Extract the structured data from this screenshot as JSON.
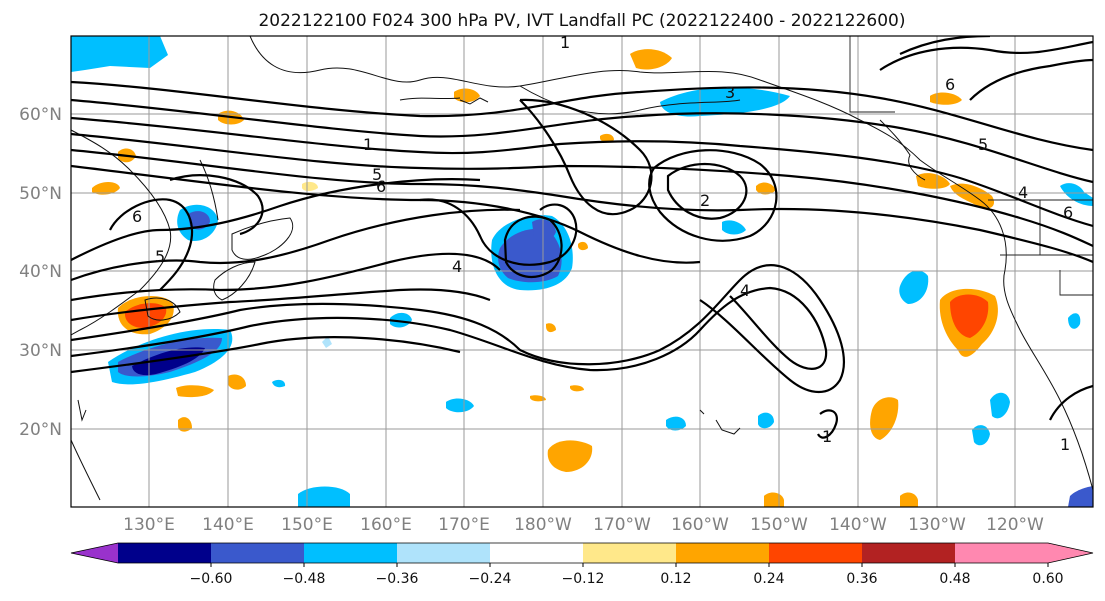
{
  "title": "2022122100 F024 300 hPa PV, IVT Landfall PC (2022122400 - 2022122600)",
  "lat_labels": [
    "20°N",
    "30°N",
    "40°N",
    "50°N",
    "60°N"
  ],
  "lon_labels": [
    "130°E",
    "140°E",
    "150°E",
    "160°E",
    "170°E",
    "180°W",
    "170°W",
    "160°W",
    "150°W",
    "140°W",
    "130°W",
    "120°W"
  ],
  "colorbar": {
    "colors": [
      "#9932cc",
      "#00008b",
      "#3a59cc",
      "#00bfff",
      "#afe3fb",
      "#ffffff",
      "#ffe88a",
      "#ffa500",
      "#ff4500",
      "#b22222",
      "#ff88b0",
      "#ff88b0"
    ],
    "tick_labels": [
      "−0.60",
      "−0.48",
      "−0.36",
      "−0.24",
      "−0.12",
      "0.12",
      "0.24",
      "0.36",
      "0.48",
      "0.60"
    ]
  },
  "contour_labels": [
    "1",
    "2",
    "3",
    "4",
    "5",
    "6"
  ]
}
